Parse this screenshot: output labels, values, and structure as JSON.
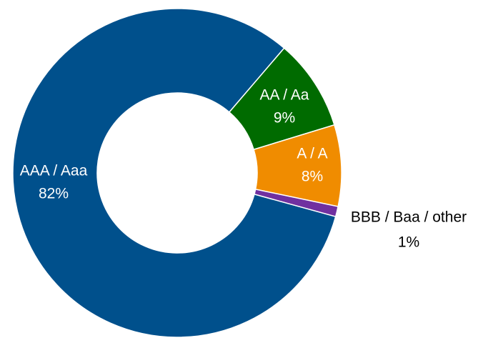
{
  "chart_data": {
    "type": "donut",
    "categories": [
      "AAA / Aaa",
      "AA / Aa",
      "A / A",
      "BBB / Baa / other"
    ],
    "values": [
      82,
      9,
      8,
      1
    ],
    "value_labels": [
      "82%",
      "9%",
      "8%",
      "1%"
    ],
    "colors": [
      "#00508c",
      "#006b00",
      "#f08c00",
      "#7030a0"
    ]
  }
}
